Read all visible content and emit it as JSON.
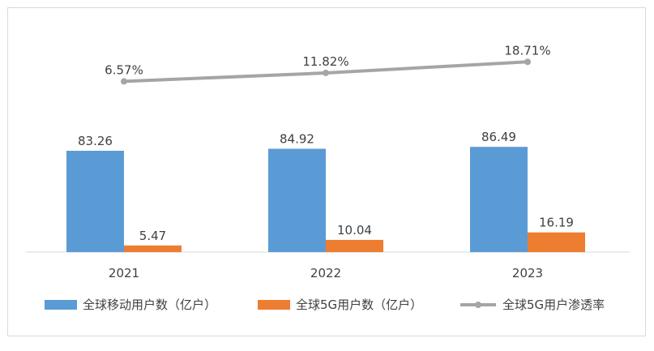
{
  "chart_data": {
    "type": "bar",
    "categories": [
      "2021",
      "2022",
      "2023"
    ],
    "series": [
      {
        "name": "全球移动用户数（亿户）",
        "type": "bar",
        "values": [
          83.26,
          84.92,
          86.49
        ],
        "labels": [
          "83.26",
          "84.92",
          "86.49"
        ],
        "color": "#5b9bd5"
      },
      {
        "name": "全球5G用户数（亿户）",
        "type": "bar",
        "values": [
          5.47,
          10.04,
          16.19
        ],
        "labels": [
          "5.47",
          "10.04",
          "16.19"
        ],
        "color": "#ed7d31"
      },
      {
        "name": "全球5G用户渗透率",
        "type": "line",
        "values": [
          6.57,
          11.82,
          18.71
        ],
        "labels": [
          "6.57%",
          "11.82%",
          "18.71%"
        ],
        "color": "#a5a5a5"
      }
    ],
    "bar_axis_range": [
      0,
      100
    ],
    "line_axis_range": [
      0,
      24
    ],
    "legend_position": "bottom",
    "grid": false
  }
}
